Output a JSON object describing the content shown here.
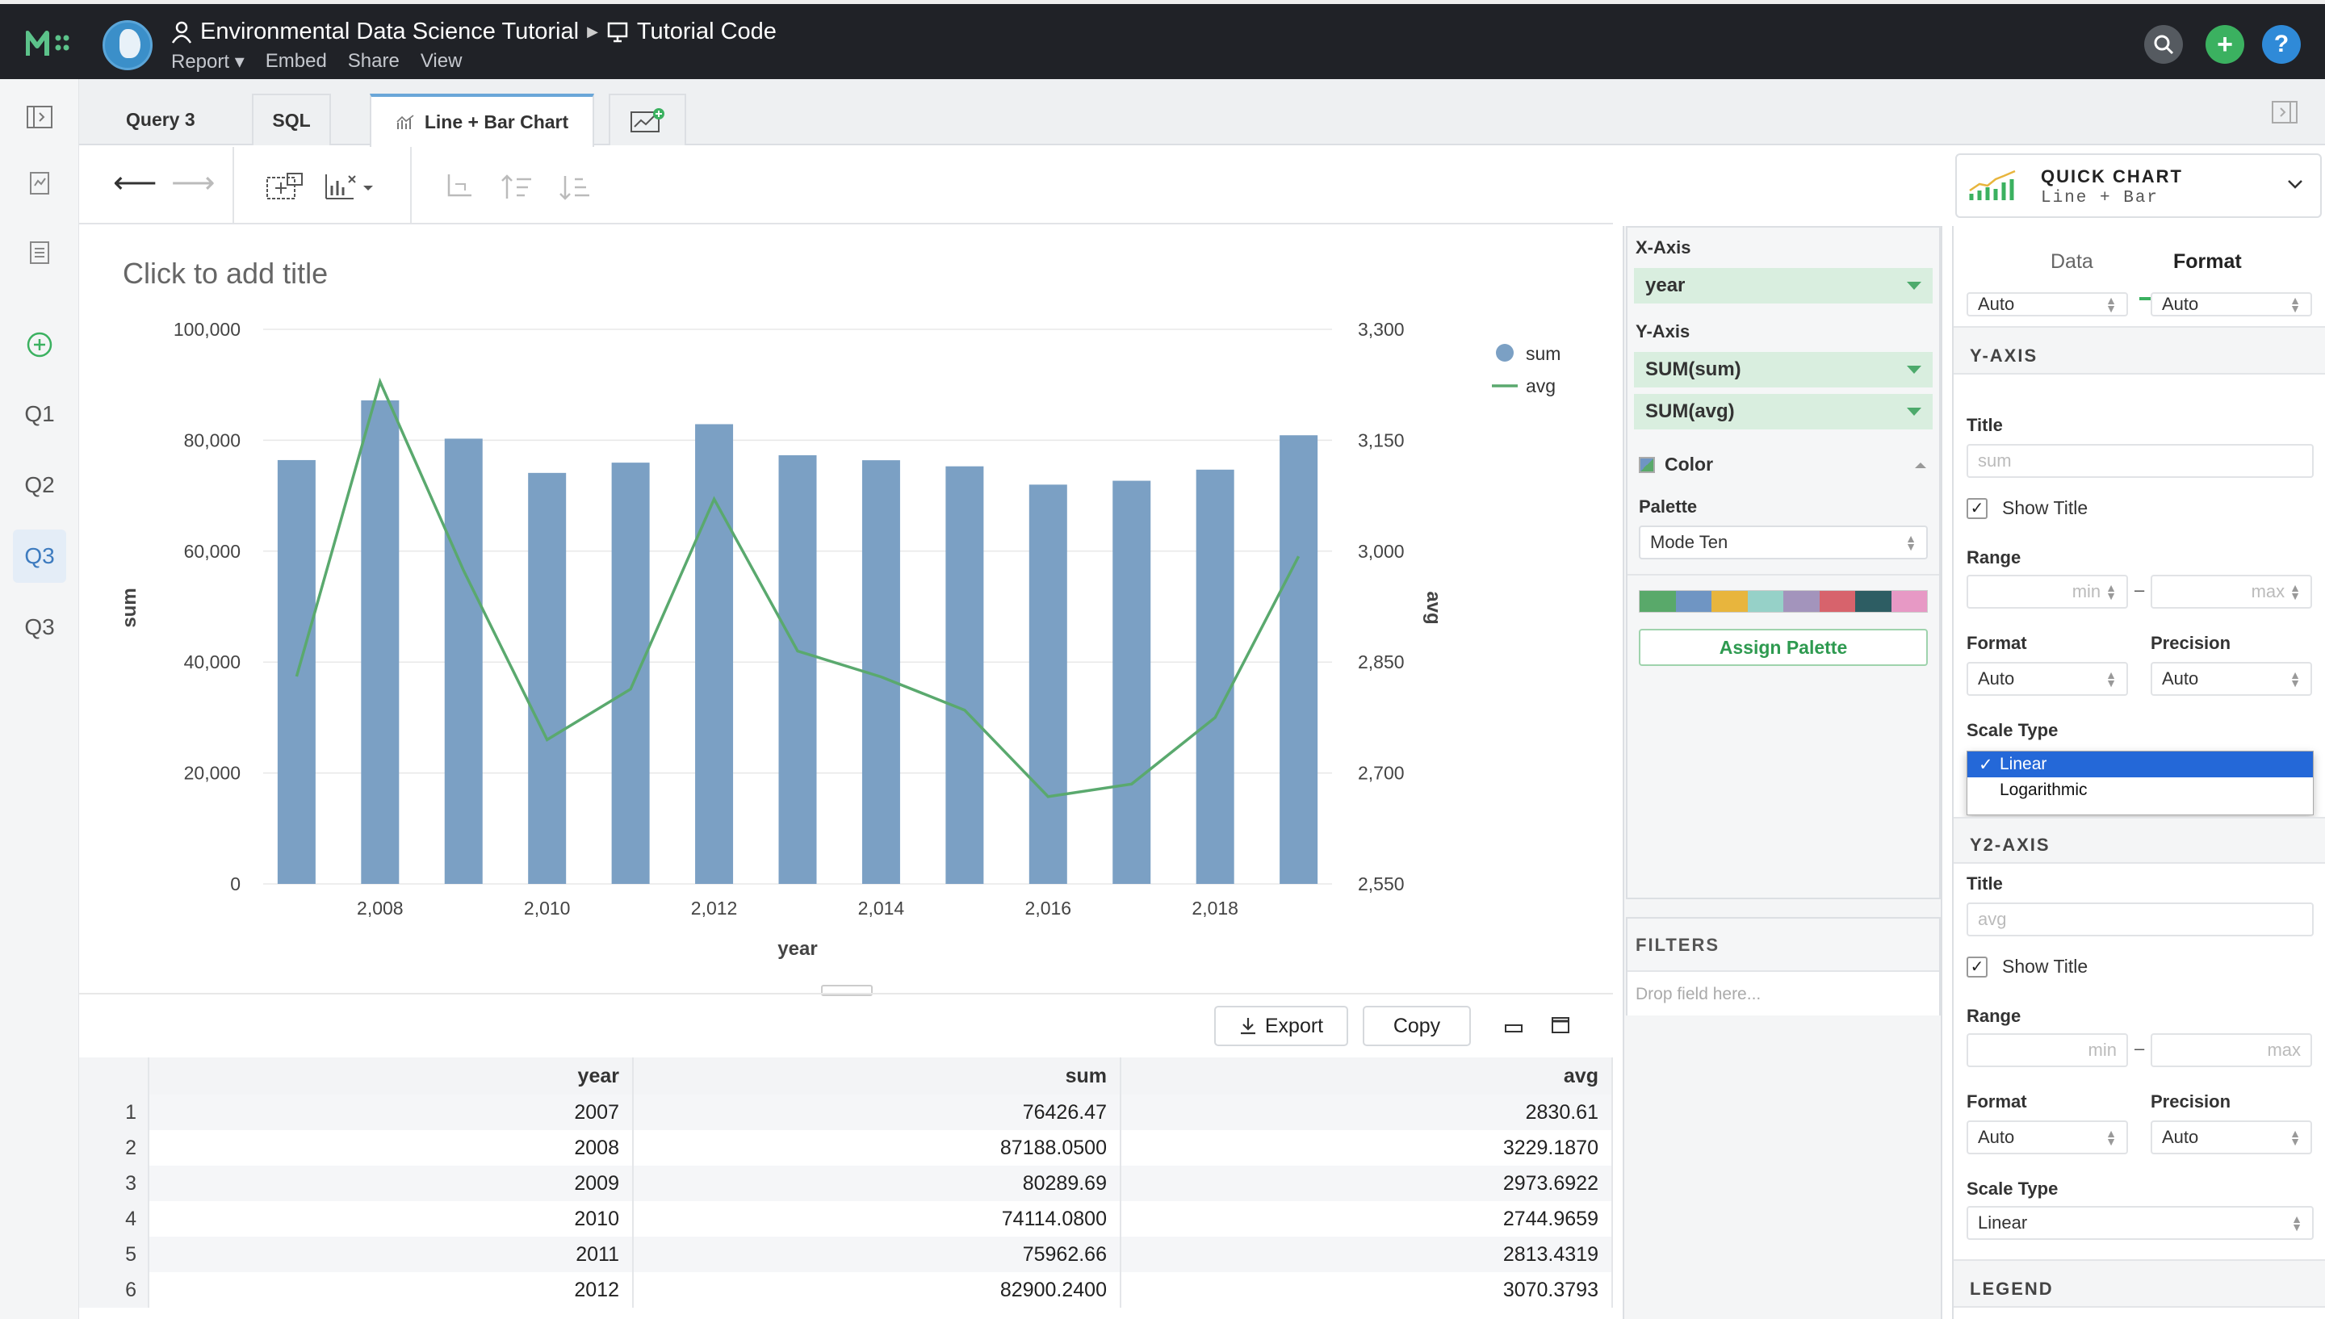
{
  "topbar": {
    "report_title": "Environmental Data Science Tutorial",
    "sub_title": "Tutorial Code",
    "menu": [
      "Report ▾",
      "Embed",
      "Share",
      "View"
    ]
  },
  "rail": {
    "items": [
      "Q1",
      "Q2",
      "Q3",
      "Q3"
    ]
  },
  "tabs": {
    "query": "Query 3",
    "sql": "SQL",
    "chart": "Line + Bar Chart"
  },
  "quick_chart": {
    "label": "QUICK CHART",
    "sub": "Line + Bar"
  },
  "chart_title_placeholder": "Click to add title",
  "chart_data": {
    "type": "bar",
    "x": [
      2007,
      2008,
      2009,
      2010,
      2011,
      2012,
      2013,
      2014,
      2015,
      2016,
      2017,
      2018,
      2019
    ],
    "series": [
      {
        "name": "sum",
        "kind": "bar",
        "axis": "y",
        "color": "#7ba0c4",
        "values": [
          76426.47,
          87188.05,
          80289.69,
          74114.08,
          75962.66,
          82900.24,
          77300,
          76400,
          75300,
          72000,
          72700,
          74700,
          80900
        ]
      },
      {
        "name": "avg",
        "kind": "line",
        "axis": "y2",
        "color": "#5aa96e",
        "values": [
          2830.61,
          3229.187,
          2973.6922,
          2744.9659,
          2813.4319,
          3070.3793,
          2865,
          2830,
          2785,
          2668,
          2685,
          2775,
          2993
        ]
      }
    ],
    "xlabel": "year",
    "ylabel": "sum",
    "y2label": "avg",
    "ylim": [
      0,
      100000
    ],
    "y2lim": [
      2550,
      3300
    ],
    "yticks": [
      "100,000",
      "80,000",
      "60,000",
      "40,000",
      "20,000",
      "0"
    ],
    "y2ticks": [
      "3,300",
      "3,150",
      "3,000",
      "2,850",
      "2,700",
      "2,550"
    ],
    "xticks": [
      "2,008",
      "2,010",
      "2,012",
      "2,014",
      "2,016",
      "2,018"
    ],
    "legend": [
      "sum",
      "avg"
    ],
    "legend_position": "top-right",
    "grid": true
  },
  "table_actions": {
    "export": "Export",
    "copy": "Copy"
  },
  "table": {
    "columns": [
      "year",
      "sum",
      "avg"
    ],
    "rows": [
      [
        "1",
        "2007",
        "76426.47",
        "2830.61"
      ],
      [
        "2",
        "2008",
        "87188.0500",
        "3229.1870"
      ],
      [
        "3",
        "2009",
        "80289.69",
        "2973.6922"
      ],
      [
        "4",
        "2010",
        "74114.0800",
        "2744.9659"
      ],
      [
        "5",
        "2011",
        "75962.66",
        "2813.4319"
      ],
      [
        "6",
        "2012",
        "82900.2400",
        "3070.3793"
      ]
    ]
  },
  "shelf": {
    "x_axis_label": "X-Axis",
    "x_field": "year",
    "y_axis_label": "Y-Axis",
    "y_fields": [
      "SUM(sum)",
      "SUM(avg)"
    ],
    "color_label": "Color",
    "palette_label": "Palette",
    "palette_value": "Mode Ten",
    "palette_colors": [
      "#59a96a",
      "#6f95c3",
      "#e8b53d",
      "#96d1c8",
      "#a394bc",
      "#d7636c",
      "#2d5d63",
      "#e799c5"
    ],
    "assign_palette": "Assign Palette",
    "filters_label": "FILTERS",
    "filters_placeholder": "Drop field here..."
  },
  "format_panel": {
    "tab_data": "Data",
    "tab_format": "Format",
    "top_auto_1": "Auto",
    "top_auto_2": "Auto",
    "y_axis": {
      "header": "Y-AXIS",
      "title_label": "Title",
      "title_placeholder": "sum",
      "show_title": "Show Title",
      "range_label": "Range",
      "min_placeholder": "min",
      "max_placeholder": "max",
      "format_label": "Format",
      "format_value": "Auto",
      "precision_label": "Precision",
      "precision_value": "Auto",
      "scale_label": "Scale Type",
      "scale_options": [
        "Linear",
        "Logarithmic"
      ]
    },
    "y2_axis": {
      "header": "Y2-AXIS",
      "title_label": "Title",
      "title_placeholder": "avg",
      "show_title": "Show Title",
      "range_label": "Range",
      "min_placeholder": "min",
      "max_placeholder": "max",
      "format_label": "Format",
      "format_value": "Auto",
      "precision_label": "Precision",
      "precision_value": "Auto",
      "scale_label": "Scale Type",
      "scale_value": "Linear"
    },
    "legend_header": "LEGEND"
  }
}
